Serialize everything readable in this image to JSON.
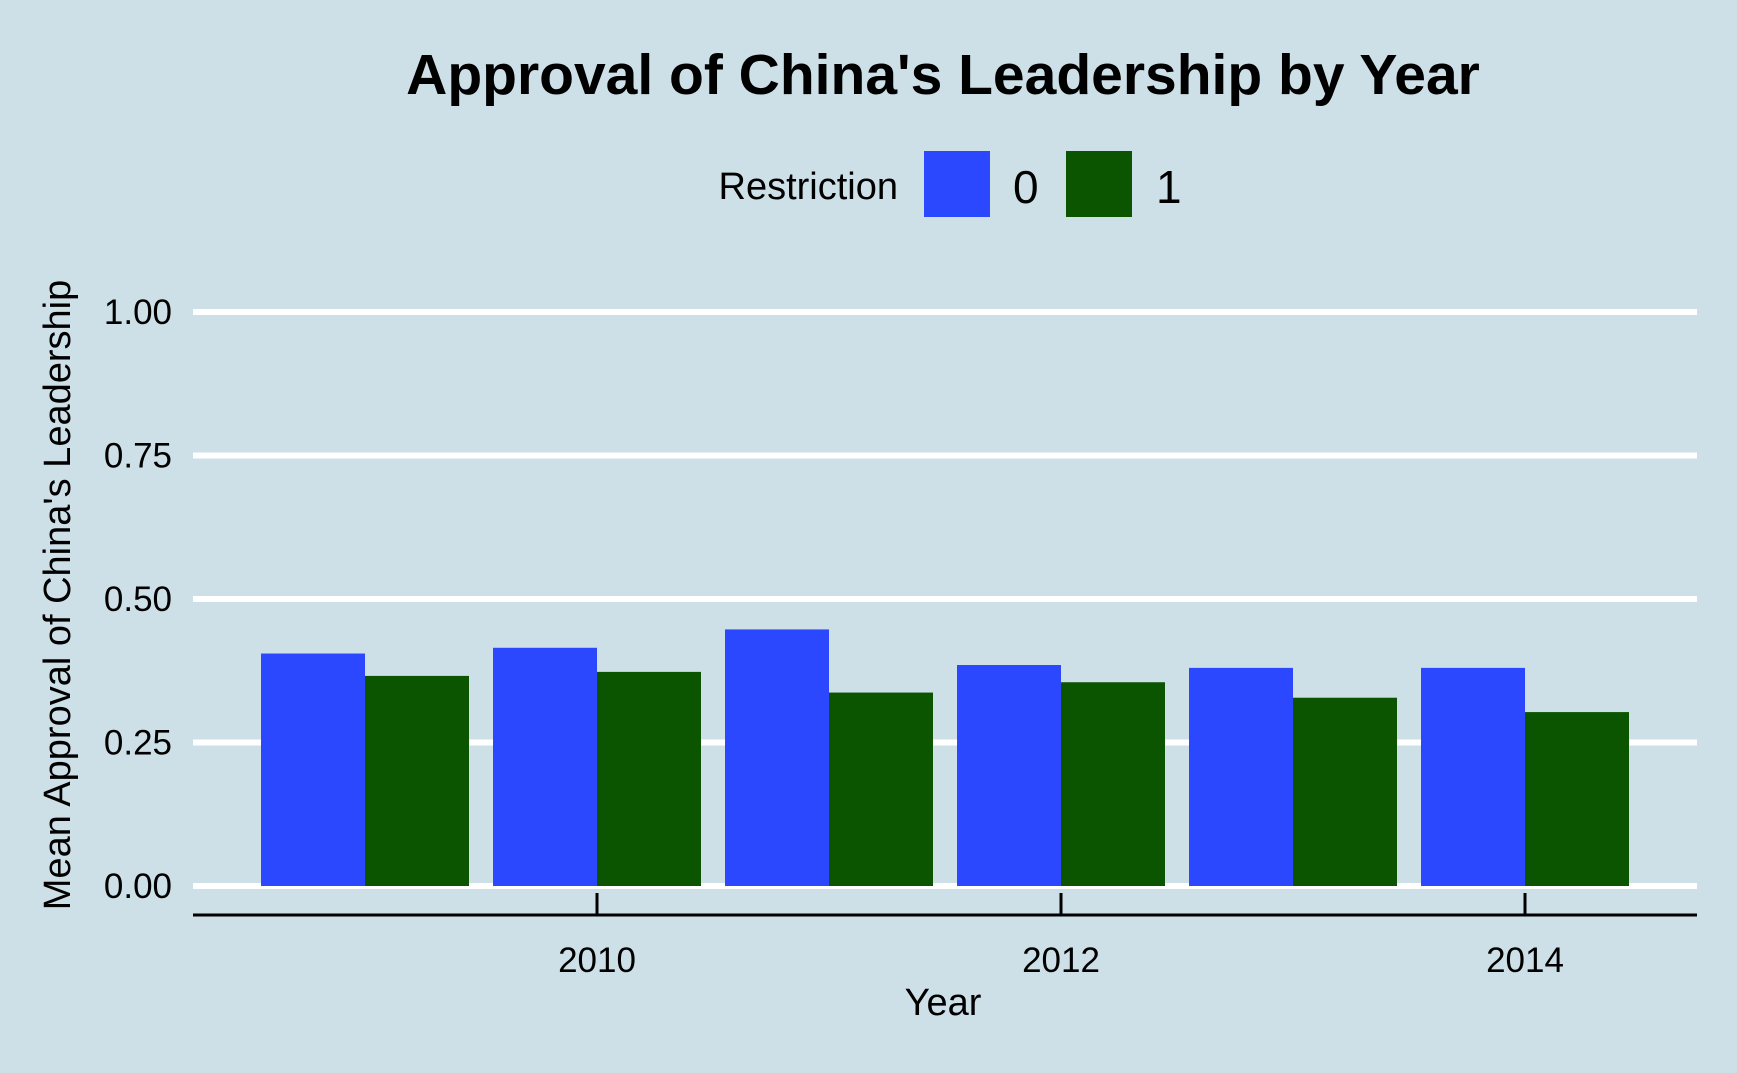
{
  "chart_data": {
    "type": "bar",
    "title": "Approval of China's Leadership by Year",
    "xlabel": "Year",
    "ylabel": "Mean Approval of China's Leadership",
    "legend": {
      "title": "Restriction",
      "position": "top"
    },
    "x": [
      2009,
      2010,
      2011,
      2012,
      2013,
      2014
    ],
    "x_ticks": [
      2010,
      2012,
      2014
    ],
    "y_ticks": [
      "0.00",
      "0.25",
      "0.50",
      "0.75",
      "1.00"
    ],
    "ylim": [
      0,
      1
    ],
    "grid": true,
    "series": [
      {
        "name": "0",
        "color": "#2b48ff",
        "values": [
          0.405,
          0.415,
          0.447,
          0.385,
          0.38,
          0.38
        ]
      },
      {
        "name": "1",
        "color": "#0b5500",
        "values": [
          0.366,
          0.373,
          0.337,
          0.355,
          0.328,
          0.303
        ]
      }
    ]
  }
}
